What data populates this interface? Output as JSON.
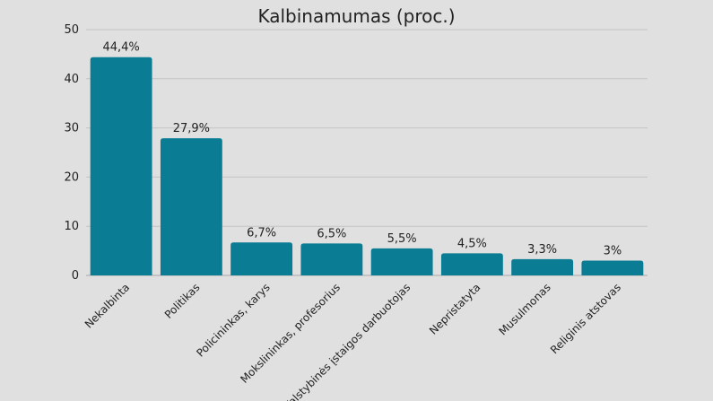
{
  "chart_data": {
    "type": "bar",
    "title": "Kalbinamumas (proc.)",
    "categories": [
      "Nekalbinta",
      "Politikas",
      "Policininkas, karys",
      "Mokslininkas, profesorius",
      "Valstybinės įstaigos darbuotojas",
      "Nepristatyta",
      "Musulmonas",
      "Religinis atstovas"
    ],
    "values": [
      44.4,
      27.9,
      6.7,
      6.5,
      5.5,
      4.5,
      3.3,
      3
    ],
    "data_labels": [
      "44,4%",
      "27,9%",
      "6,7%",
      "6,5%",
      "5,5%",
      "4,5%",
      "3,3%",
      "3%"
    ],
    "yticks": [
      0,
      10,
      20,
      30,
      40,
      50
    ],
    "ylim": [
      0,
      50
    ],
    "xlabel": "",
    "ylabel": "",
    "grid": true,
    "legend": "none",
    "bar_color": "#0a7c94",
    "grid_color": "#c4c4c4"
  }
}
